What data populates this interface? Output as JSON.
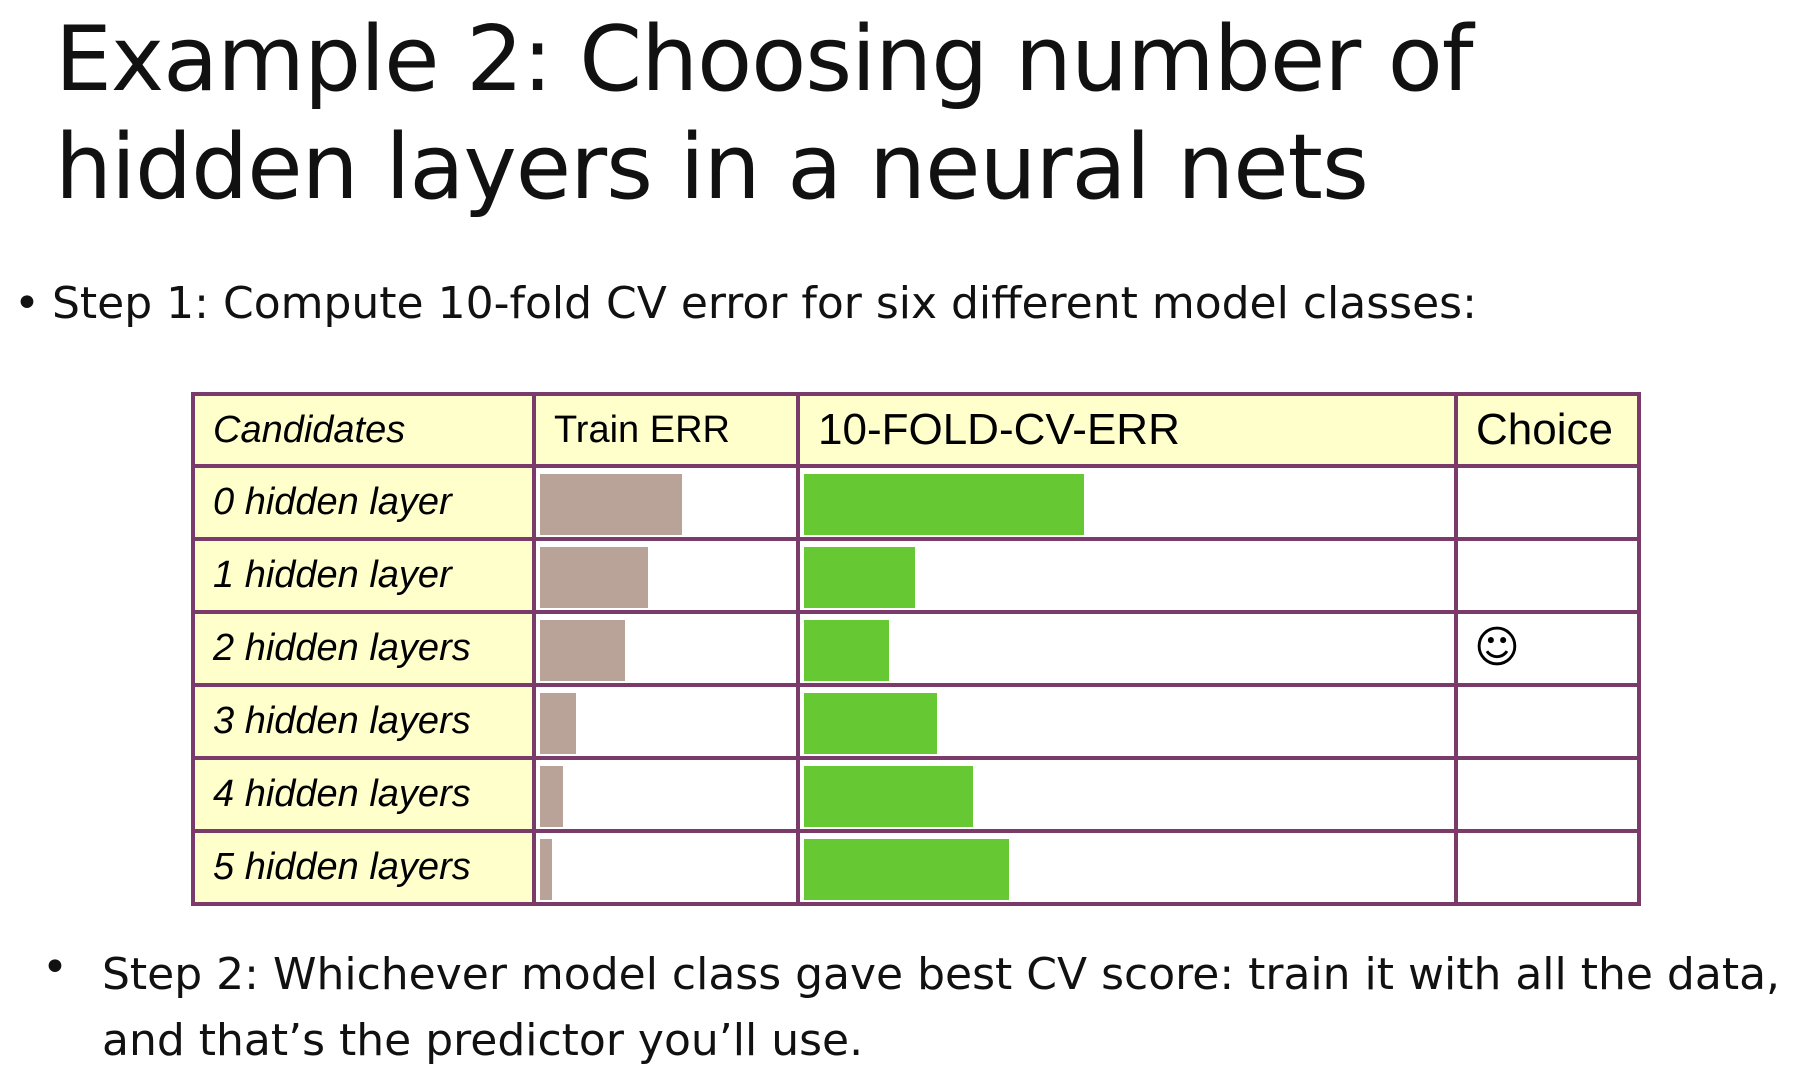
{
  "slide": {
    "title": "Example 2: Choosing number of hidden layers in a neural nets",
    "step1": "Step 1: Compute 10-fold CV error for six different model classes:",
    "step2": "Step 2: Whichever model class gave best CV score: train it with all the data, and that’s the predictor you’ll use.",
    "bullet_char": "•"
  },
  "table": {
    "headers": {
      "candidates": "Candidates",
      "train_err": "Train ERR",
      "cv_err": "10-FOLD-CV-ERR",
      "choice": "Choice"
    },
    "rows": [
      {
        "label": "0 hidden layer",
        "train_err": 0.55,
        "cv_err": 0.43,
        "choice": ""
      },
      {
        "label": "1 hidden layer",
        "train_err": 0.42,
        "cv_err": 0.17,
        "choice": ""
      },
      {
        "label": "2 hidden layers",
        "train_err": 0.33,
        "cv_err": 0.13,
        "choice": "☺"
      },
      {
        "label": "3 hidden layers",
        "train_err": 0.14,
        "cv_err": 0.205,
        "choice": ""
      },
      {
        "label": "4 hidden layers",
        "train_err": 0.09,
        "cv_err": 0.26,
        "choice": ""
      },
      {
        "label": "5 hidden layers",
        "train_err": 0.045,
        "cv_err": 0.315,
        "choice": ""
      }
    ],
    "colors": {
      "train_bar": "#b9a398",
      "cv_bar": "#66c833",
      "header_bg": "#ffffcc",
      "border": "#7a3a6a"
    }
  }
}
